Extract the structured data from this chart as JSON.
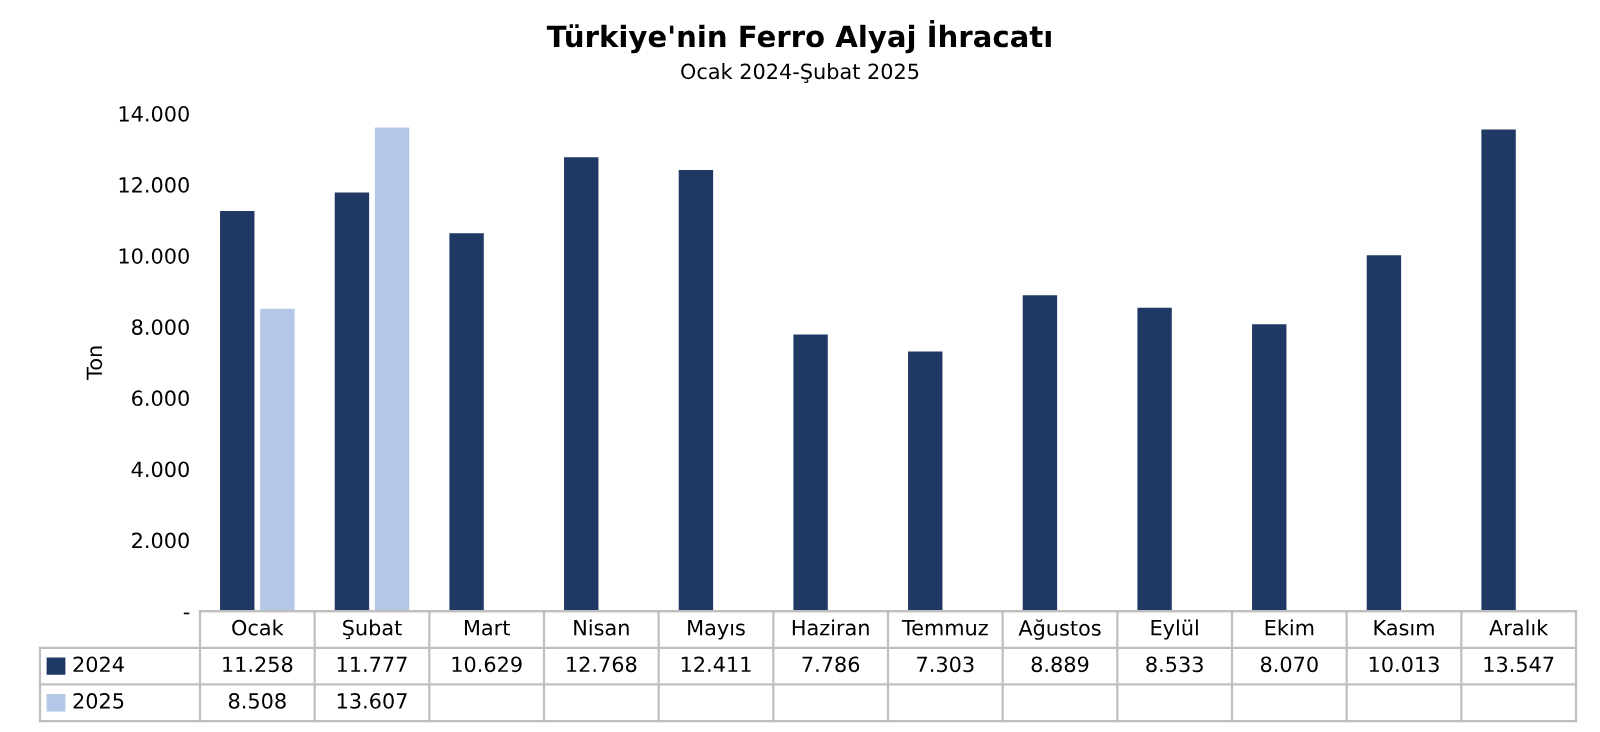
{
  "chart_data": {
    "type": "bar",
    "title": "Türkiye'nin Ferro Alyaj İhracatı",
    "subtitle": "Ocak 2024-Şubat 2025",
    "ylabel": "Ton",
    "categories": [
      "Ocak",
      "Şubat",
      "Mart",
      "Nisan",
      "Mayıs",
      "Haziran",
      "Temmuz",
      "Ağustos",
      "Eylül",
      "Ekim",
      "Kasım",
      "Aralık"
    ],
    "series": [
      {
        "name": "2024",
        "color": "#1f3864",
        "values": [
          11258,
          11777,
          10629,
          12768,
          12411,
          7786,
          7303,
          8889,
          8533,
          8070,
          10013,
          13547
        ],
        "value_labels": [
          "11.258",
          "11.777",
          "10.629",
          "12.768",
          "12.411",
          "7.786",
          "7.303",
          "8.889",
          "8.533",
          "8.070",
          "10.013",
          "13.547"
        ]
      },
      {
        "name": "2025",
        "color": "#b4c7e7",
        "values": [
          8508,
          13607,
          null,
          null,
          null,
          null,
          null,
          null,
          null,
          null,
          null,
          null
        ],
        "value_labels": [
          "8.508",
          "13.607",
          null,
          null,
          null,
          null,
          null,
          null,
          null,
          null,
          null,
          null
        ]
      }
    ],
    "ylim": [
      0,
      14000
    ],
    "yticks": [
      {
        "value": 0,
        "label": "-"
      },
      {
        "value": 2000,
        "label": "2.000"
      },
      {
        "value": 4000,
        "label": "4.000"
      },
      {
        "value": 6000,
        "label": "6.000"
      },
      {
        "value": 8000,
        "label": "8.000"
      },
      {
        "value": 10000,
        "label": "10.000"
      },
      {
        "value": 12000,
        "label": "12.000"
      },
      {
        "value": 14000,
        "label": "14.000"
      }
    ],
    "grid": false,
    "legend": "bottom"
  }
}
